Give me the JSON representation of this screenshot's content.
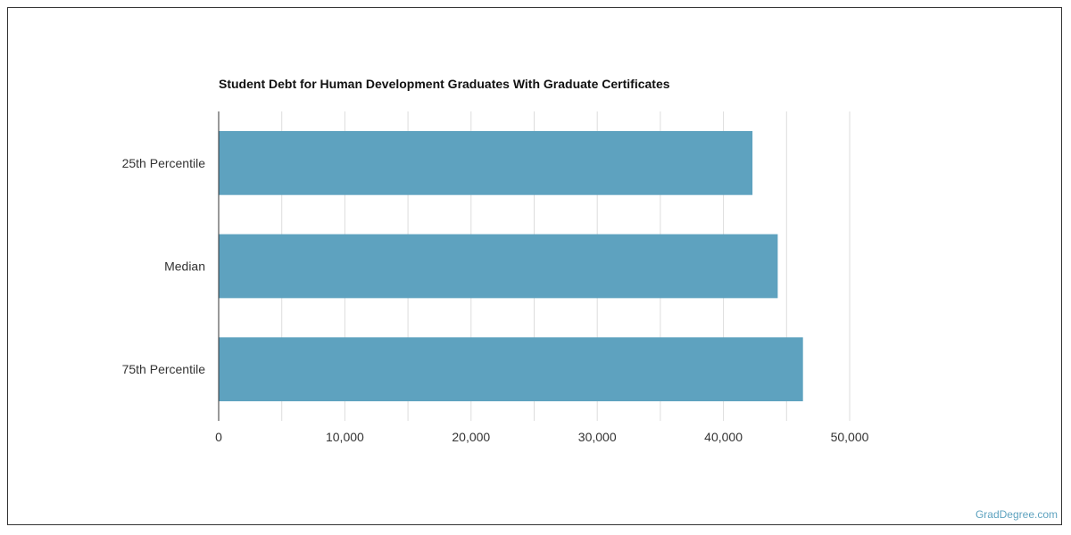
{
  "chart_data": {
    "type": "bar",
    "orientation": "horizontal",
    "title": "Student Debt for Human Development Graduates With Graduate Certificates",
    "categories": [
      "25th Percentile",
      "Median",
      "75th Percentile"
    ],
    "values": [
      42300,
      44300,
      46300
    ],
    "xlim": [
      0,
      50000
    ],
    "x_ticks": [
      0,
      10000,
      20000,
      30000,
      40000,
      50000
    ],
    "x_tick_labels": [
      "0",
      "10,000",
      "20,000",
      "30,000",
      "40,000",
      "50,000"
    ],
    "grid": true,
    "bar_color": "#5ea2bf",
    "grid_color": "#dddddd",
    "axis_color": "#333333"
  },
  "watermark": "GradDegree.com"
}
